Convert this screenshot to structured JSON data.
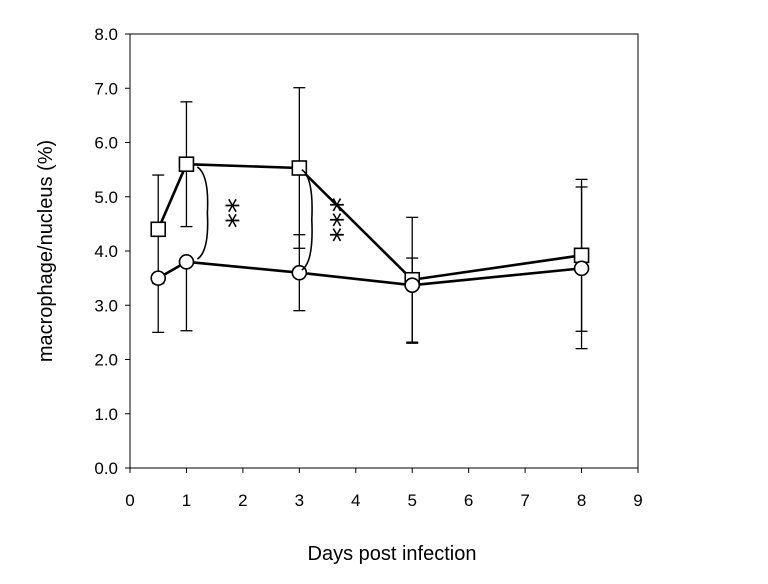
{
  "chart_data": {
    "type": "line",
    "title": "",
    "xlabel": "Days post infection",
    "ylabel": "macrophage/nucleus (%)",
    "xlim": [
      0,
      9
    ],
    "ylim": [
      0.0,
      8.0
    ],
    "x_ticks": [
      "0",
      "1",
      "2",
      "3",
      "4",
      "5",
      "6",
      "7",
      "8",
      "9"
    ],
    "y_ticks": [
      "0.0",
      "1.0",
      "2.0",
      "3.0",
      "4.0",
      "5.0",
      "6.0",
      "7.0",
      "8.0"
    ],
    "grid": false,
    "legend": "none",
    "series": [
      {
        "marker": "square",
        "x": [
          0.5,
          1,
          3,
          5,
          8
        ],
        "y": [
          4.4,
          5.6,
          5.53,
          3.47,
          3.92
        ],
        "err_upper": [
          1.0,
          1.15,
          1.48,
          1.15,
          1.4
        ],
        "err_lower": [
          1.0,
          1.15,
          1.48,
          1.15,
          1.4
        ]
      },
      {
        "marker": "circle",
        "x": [
          0.5,
          1,
          3,
          5,
          8
        ],
        "y": [
          3.5,
          3.8,
          3.6,
          3.37,
          3.68
        ],
        "err_upper": [
          0,
          0,
          0.7,
          0.5,
          1.5
        ],
        "err_lower": [
          1.0,
          1.27,
          0.7,
          1.07,
          1.48
        ]
      }
    ],
    "annotations": [
      {
        "text": "**",
        "x": 1.3,
        "y_from": 3.85,
        "y_to": 5.55
      },
      {
        "text": "***",
        "x": 3.15,
        "y_from": 3.65,
        "y_to": 5.5
      }
    ]
  }
}
